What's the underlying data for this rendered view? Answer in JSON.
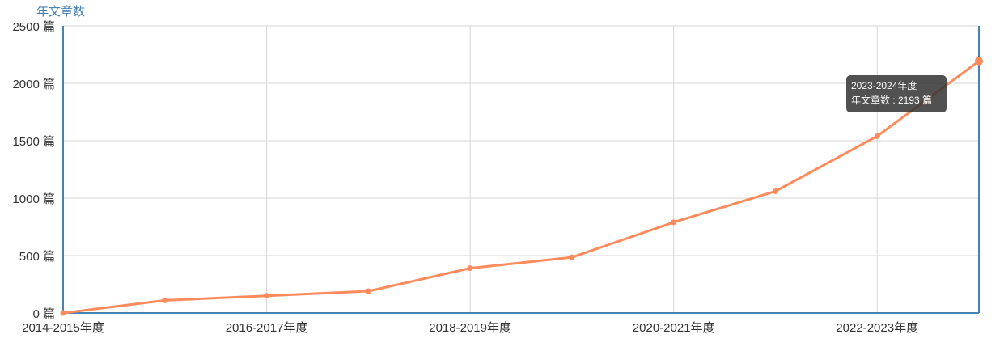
{
  "chart_data": {
    "type": "line",
    "y_label": "年文章数",
    "categories": [
      "2014-2015年度",
      null,
      "2016-2017年度",
      null,
      "2018-2019年度",
      null,
      "2020-2021年度",
      null,
      "2022-2023年度",
      "2023-2024年度"
    ],
    "series": [
      {
        "name": "年文章数",
        "color": "#ff8a5b",
        "values": [
          0,
          110,
          150,
          190,
          390,
          485,
          790,
          1060,
          1540,
          2193
        ]
      }
    ],
    "ylim": [
      0,
      2500
    ],
    "yticks": [
      {
        "value": 0,
        "label": "0 篇"
      },
      {
        "value": 500,
        "label": "500 篇"
      },
      {
        "value": 1000,
        "label": "1000 篇"
      },
      {
        "value": 1500,
        "label": "1500 篇"
      },
      {
        "value": 2000,
        "label": "2000 篇"
      },
      {
        "value": 2500,
        "label": "2500 篇"
      }
    ],
    "grid": true,
    "axis_color": "#4682b4",
    "tooltip": {
      "title_index": 9,
      "text": "年文章数 : 2193 篇"
    }
  }
}
